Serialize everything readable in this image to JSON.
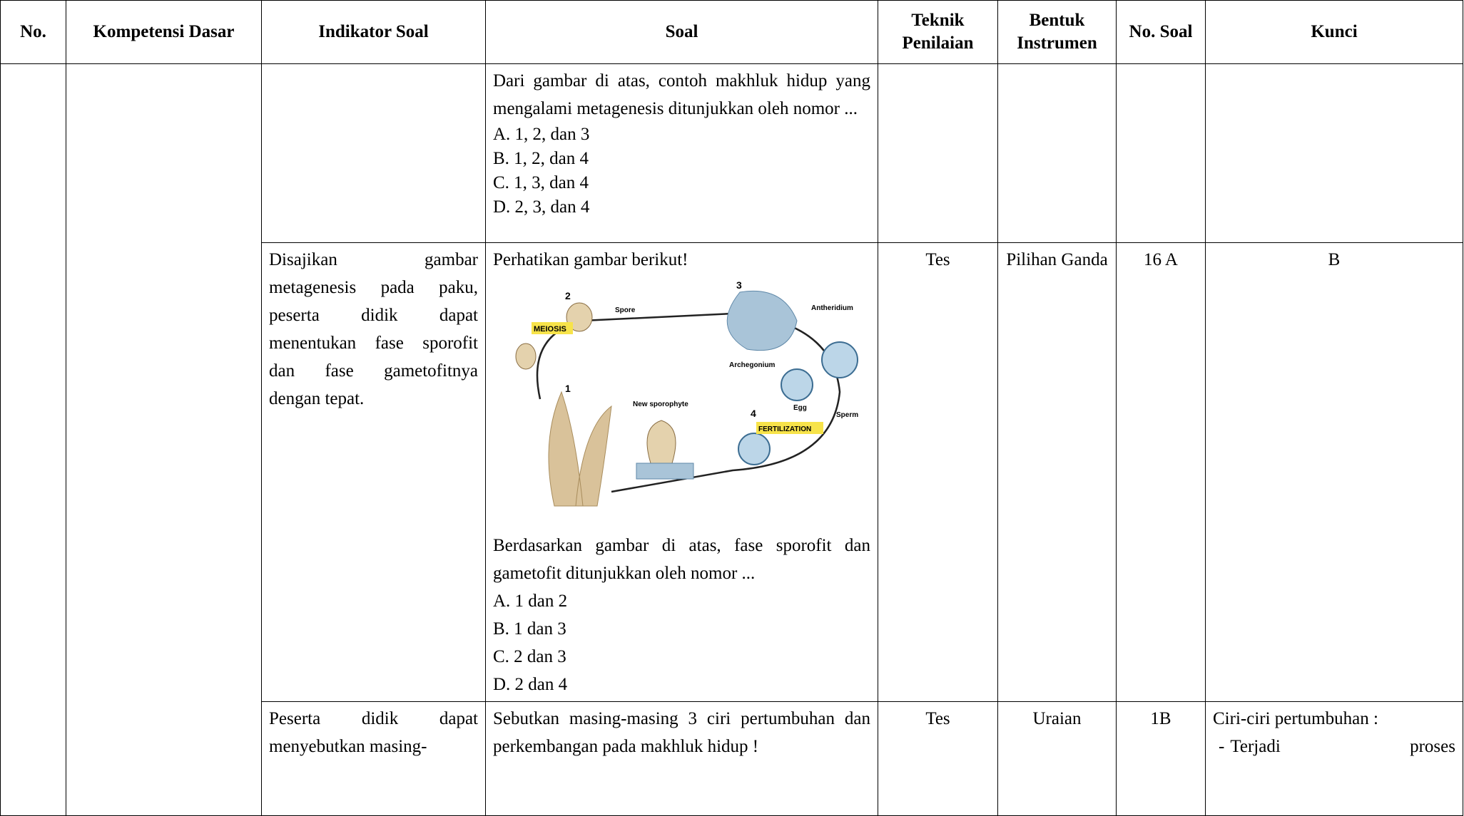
{
  "header": {
    "columns": [
      "No.",
      "Kompetensi Dasar",
      "Indikator Soal",
      "Soal",
      "Teknik Penilaian",
      "Bentuk Instrumen",
      "No. Soal",
      "Kunci"
    ]
  },
  "rows": [
    {
      "soal_text": "Dari gambar di atas, contoh makhluk hidup yang mengalami metagenesis ditunjukkan oleh nomor ...",
      "options": [
        "A.  1, 2, dan 3",
        "B.  1, 2, dan 4",
        "C.  1, 3, dan 4",
        "D.  2, 3, dan 4"
      ]
    },
    {
      "indikator": "Disajikan gambar metagenesis pada paku, peserta didik dapat menentukan fase sporofit dan fase gametofitnya dengan tepat.",
      "soal_intro": "Perhatikan gambar berikut!",
      "figure": {
        "labels": [
          "1",
          "2",
          "3",
          "4",
          "MEIOSIS",
          "Spore",
          "Antheridium",
          "Archegonium",
          "Egg",
          "Sperm",
          "New sporophyte",
          "FERTILIZATION"
        ]
      },
      "soal_text": "Berdasarkan gambar di atas, fase sporofit dan gametofit ditunjukkan oleh nomor ...",
      "options": [
        "A.  1 dan 2",
        "B.  1 dan 3",
        "C.  2 dan 3",
        "D.  2 dan 4"
      ],
      "teknik": "Tes",
      "bentuk": "Pilihan Ganda",
      "no_soal": "16 A",
      "kunci": "B"
    },
    {
      "indikator": "Peserta didik dapat menyebutkan masing-",
      "soal_text": "Sebutkan masing-masing 3 ciri pertumbuhan dan perkembangan pada makhluk hidup !",
      "teknik": "Tes",
      "bentuk": "Uraian",
      "no_soal": "1B",
      "kunci_title": "Ciri-ciri pertumbuhan :",
      "kunci_item": [
        "-",
        "Terjadi",
        "proses"
      ]
    }
  ]
}
